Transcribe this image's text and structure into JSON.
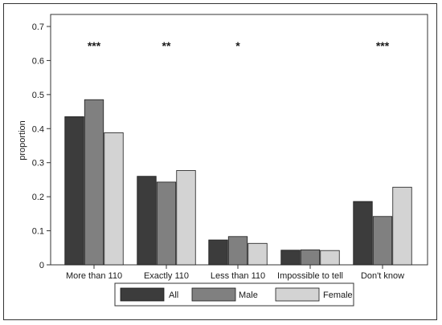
{
  "chart_data": {
    "type": "bar",
    "title": "",
    "xlabel": "",
    "ylabel": "proportion",
    "ylim": [
      0,
      0.7
    ],
    "yticks": [
      "0",
      "0.1",
      "0.2",
      "0.3",
      "0.4",
      "0.5",
      "0.6",
      "0.7"
    ],
    "grid": false,
    "legend_position": "bottom",
    "categories": [
      "More than 110",
      "Exactly 110",
      "Less than 110",
      "Impossible to tell",
      "Don't know"
    ],
    "significance": [
      "***",
      "**",
      "*",
      "",
      "***"
    ],
    "series": [
      {
        "name": "All",
        "color": "#3c3c3c",
        "values": [
          0.435,
          0.26,
          0.073,
          0.043,
          0.186
        ]
      },
      {
        "name": "Male",
        "color": "#808080",
        "values": [
          0.485,
          0.243,
          0.083,
          0.044,
          0.142
        ]
      },
      {
        "name": "Female",
        "color": "#d3d3d3",
        "values": [
          0.388,
          0.277,
          0.063,
          0.042,
          0.228
        ]
      }
    ]
  }
}
